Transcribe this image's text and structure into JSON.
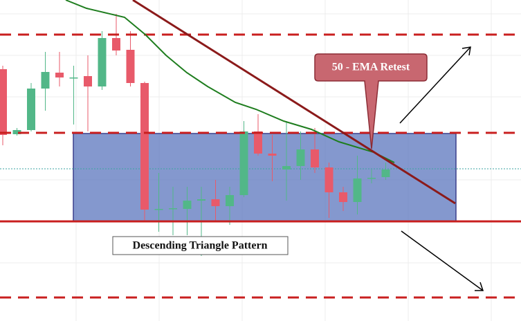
{
  "chart_data": {
    "type": "candlestick",
    "annotations": [
      "50 - EMA Retest",
      "Descending Triangle Pattern"
    ],
    "ylim": [
      0,
      464
    ],
    "up_color": "#52b788",
    "down_color": "#e85a6a",
    "open": [
      364,
      270,
      276,
      336,
      359,
      352,
      354,
      339,
      409,
      392,
      344,
      162,
      162,
      162,
      174,
      176,
      166,
      182,
      274,
      242,
      219,
      224,
      248,
      222,
      186,
      172,
      207,
      208
    ],
    "high": [
      369,
      279,
      344,
      389,
      389,
      369,
      384,
      419,
      444,
      419,
      346,
      214,
      194,
      194,
      194,
      204,
      194,
      289,
      299,
      269,
      289,
      274,
      279,
      229,
      194,
      239,
      219,
      229
    ],
    "low": [
      254,
      268,
      274,
      304,
      339,
      284,
      274,
      334,
      384,
      339,
      144,
      129,
      124,
      124,
      94,
      144,
      139,
      179,
      239,
      202,
      174,
      204,
      214,
      149,
      159,
      154,
      199,
      204
    ],
    "close": [
      269,
      276,
      336,
      360,
      352,
      352,
      339,
      409,
      391,
      344,
      161,
      162,
      163,
      174,
      176,
      166,
      182,
      274,
      242,
      239,
      224,
      248,
      222,
      186,
      172,
      206,
      207,
      219
    ]
  }
}
